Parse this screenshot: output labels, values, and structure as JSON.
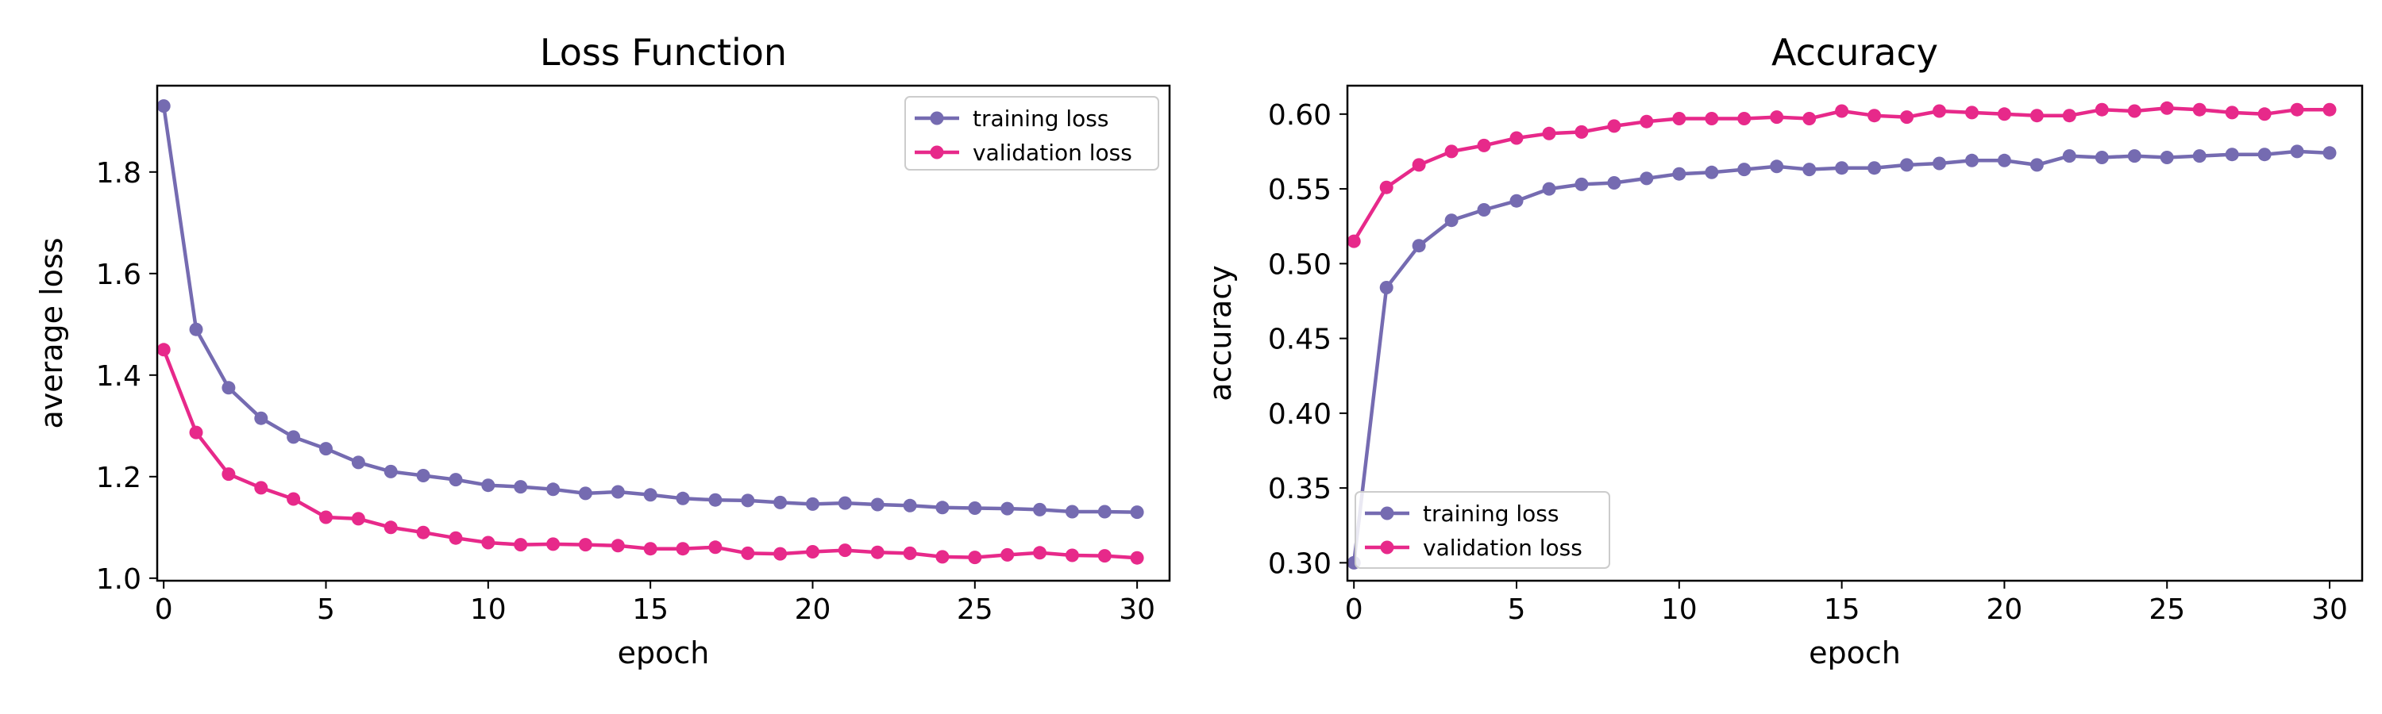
{
  "colors": {
    "training": "#756bb1",
    "validation": "#e7298a"
  },
  "chart_data": [
    {
      "type": "line",
      "title": "Loss Function",
      "xlabel": "epoch",
      "ylabel": "average loss",
      "xlim": [
        -0.2,
        31
      ],
      "ylim": [
        0.995,
        1.97
      ],
      "xticks": [
        0,
        5,
        10,
        15,
        20,
        25,
        30
      ],
      "xtick_labels": [
        "0",
        "5",
        "10",
        "15",
        "20",
        "25",
        "30"
      ],
      "yticks": [
        1.0,
        1.2,
        1.4,
        1.6,
        1.8
      ],
      "ytick_labels": [
        "1.0",
        "1.2",
        "1.4",
        "1.6",
        "1.8"
      ],
      "legend": "top-right",
      "grid": false,
      "x": [
        0,
        1,
        2,
        3,
        4,
        5,
        6,
        7,
        8,
        9,
        10,
        11,
        12,
        13,
        14,
        15,
        16,
        17,
        18,
        19,
        20,
        21,
        22,
        23,
        24,
        25,
        26,
        27,
        28,
        29,
        30
      ],
      "series": [
        {
          "name": "training loss",
          "color": "#756bb1",
          "values": [
            1.93,
            1.49,
            1.375,
            1.315,
            1.278,
            1.255,
            1.228,
            1.21,
            1.202,
            1.194,
            1.183,
            1.18,
            1.175,
            1.167,
            1.17,
            1.164,
            1.157,
            1.154,
            1.153,
            1.149,
            1.146,
            1.148,
            1.145,
            1.143,
            1.139,
            1.138,
            1.137,
            1.135,
            1.131,
            1.131,
            1.13
          ]
        },
        {
          "name": "validation loss",
          "color": "#e7298a",
          "values": [
            1.45,
            1.287,
            1.205,
            1.178,
            1.156,
            1.12,
            1.117,
            1.1,
            1.09,
            1.079,
            1.07,
            1.066,
            1.067,
            1.066,
            1.064,
            1.058,
            1.058,
            1.061,
            1.049,
            1.048,
            1.052,
            1.055,
            1.051,
            1.049,
            1.042,
            1.041,
            1.046,
            1.05,
            1.045,
            1.044,
            1.04
          ]
        }
      ]
    },
    {
      "type": "line",
      "title": "Accuracy",
      "xlabel": "epoch",
      "ylabel": "accuracy",
      "xlim": [
        -0.2,
        31
      ],
      "ylim": [
        0.288,
        0.619
      ],
      "xticks": [
        0,
        5,
        10,
        15,
        20,
        25,
        30
      ],
      "xtick_labels": [
        "0",
        "5",
        "10",
        "15",
        "20",
        "25",
        "30"
      ],
      "yticks": [
        0.3,
        0.35,
        0.4,
        0.45,
        0.5,
        0.55,
        0.6
      ],
      "ytick_labels": [
        "0.30",
        "0.35",
        "0.40",
        "0.45",
        "0.50",
        "0.55",
        "0.60"
      ],
      "legend": "bottom-left",
      "grid": false,
      "x": [
        0,
        1,
        2,
        3,
        4,
        5,
        6,
        7,
        8,
        9,
        10,
        11,
        12,
        13,
        14,
        15,
        16,
        17,
        18,
        19,
        20,
        21,
        22,
        23,
        24,
        25,
        26,
        27,
        28,
        29,
        30
      ],
      "series": [
        {
          "name": "training loss",
          "color": "#756bb1",
          "values": [
            0.3,
            0.484,
            0.512,
            0.529,
            0.536,
            0.542,
            0.55,
            0.553,
            0.554,
            0.557,
            0.56,
            0.561,
            0.563,
            0.565,
            0.563,
            0.564,
            0.564,
            0.566,
            0.567,
            0.569,
            0.569,
            0.566,
            0.572,
            0.571,
            0.572,
            0.571,
            0.572,
            0.573,
            0.573,
            0.575,
            0.574
          ]
        },
        {
          "name": "validation loss",
          "color": "#e7298a",
          "values": [
            0.515,
            0.551,
            0.566,
            0.575,
            0.579,
            0.584,
            0.587,
            0.588,
            0.592,
            0.595,
            0.597,
            0.597,
            0.597,
            0.598,
            0.597,
            0.602,
            0.599,
            0.598,
            0.602,
            0.601,
            0.6,
            0.599,
            0.599,
            0.603,
            0.602,
            0.604,
            0.603,
            0.601,
            0.6,
            0.603,
            0.603
          ]
        }
      ]
    }
  ]
}
